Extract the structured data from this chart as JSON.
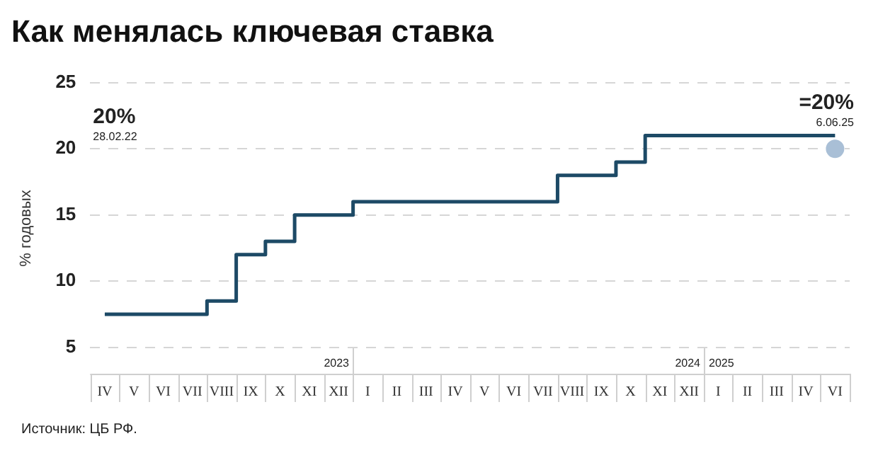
{
  "chart_data": {
    "type": "step",
    "title": "Как менялась ключевая ставка",
    "ylabel": "% годовых",
    "categories": [
      "IV",
      "V",
      "VI",
      "VII",
      "VIII",
      "IX",
      "X",
      "XI",
      "XII",
      "I",
      "II",
      "III",
      "IV",
      "V",
      "VI",
      "VII",
      "VIII",
      "IX",
      "X",
      "XI",
      "XII",
      "I",
      "II",
      "III",
      "IV",
      "VI"
    ],
    "ylim": [
      3,
      25
    ],
    "yticks": [
      5,
      10,
      15,
      20,
      25
    ],
    "grid": "y",
    "line_style": "solid",
    "legend": false,
    "series": [
      {
        "color": "#1d4a66",
        "marker": "none",
        "values": [
          7.5,
          7.5,
          7.5,
          7.5,
          8.5,
          12,
          13,
          15,
          15,
          16,
          16,
          16,
          16,
          16,
          16,
          16,
          18,
          18,
          19,
          21,
          21,
          21,
          21,
          21,
          21,
          21
        ]
      },
      {
        "type": "scatter",
        "color": "#a9bfd6",
        "marker": "circle",
        "values": [
          null,
          null,
          null,
          null,
          null,
          null,
          null,
          null,
          null,
          null,
          null,
          null,
          null,
          null,
          null,
          null,
          null,
          null,
          null,
          null,
          null,
          null,
          null,
          null,
          null,
          20
        ]
      }
    ],
    "annotations": [
      "20%",
      "28.02.22",
      "=20%",
      "6.06.25",
      "Источник: ЦБ РФ.",
      "2023",
      "2024",
      "2025"
    ]
  }
}
